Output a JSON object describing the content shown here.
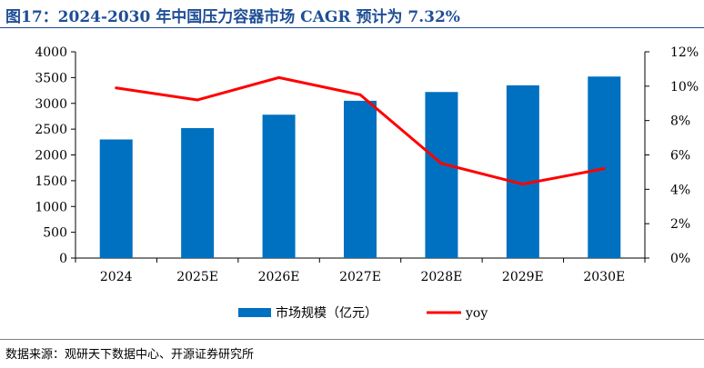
{
  "title": "图17：2024-2030 年中国压力容器市场 CAGR 预计为 7.32%",
  "source": "数据来源：观研天下数据中心、开源证券研究所",
  "colors": {
    "bar": "#0070c0",
    "line": "#ff0000",
    "title": "#1f4e96"
  },
  "chart_data": {
    "type": "bar",
    "categories": [
      "2024",
      "2025E",
      "2026E",
      "2027E",
      "2028E",
      "2029E",
      "2030E"
    ],
    "series": [
      {
        "name": "市场规模（亿元）",
        "type": "bar",
        "axis": "left",
        "values": [
          2300,
          2520,
          2780,
          3050,
          3220,
          3350,
          3520
        ]
      },
      {
        "name": "yoy",
        "type": "line",
        "axis": "right",
        "values": [
          9.9,
          9.2,
          10.5,
          9.5,
          5.5,
          4.3,
          5.2
        ]
      }
    ],
    "ylim_left": [
      0,
      4000
    ],
    "yticks_left": [
      "0",
      "500",
      "1000",
      "1500",
      "2000",
      "2500",
      "3000",
      "3500",
      "4000"
    ],
    "ylim_right": [
      0,
      12
    ],
    "yticks_right": [
      "0%",
      "2%",
      "4%",
      "6%",
      "8%",
      "10%",
      "12%"
    ],
    "grid": false,
    "legend_position": "bottom"
  }
}
